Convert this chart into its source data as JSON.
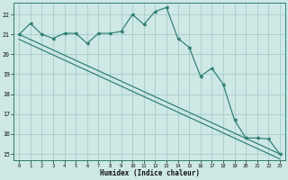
{
  "xlabel": "Humidex (Indice chaleur)",
  "x_values": [
    0,
    1,
    2,
    3,
    4,
    5,
    6,
    7,
    8,
    9,
    10,
    11,
    12,
    13,
    14,
    15,
    16,
    17,
    18,
    19,
    20,
    21,
    22,
    23
  ],
  "main_line": [
    21.0,
    21.55,
    21.0,
    20.8,
    21.05,
    21.05,
    20.55,
    21.05,
    21.05,
    21.15,
    22.0,
    21.5,
    22.15,
    22.35,
    20.8,
    20.35,
    18.9,
    19.3,
    18.5,
    16.7,
    15.8,
    15.8,
    15.75,
    15.0
  ],
  "trend1_x": [
    0,
    23
  ],
  "trend1_y": [
    21.0,
    15.0
  ],
  "trend2_x": [
    0,
    23
  ],
  "trend2_y": [
    20.75,
    14.75
  ],
  "ylim": [
    14.7,
    22.6
  ],
  "xlim": [
    -0.5,
    23.5
  ],
  "yticks": [
    15,
    16,
    17,
    18,
    19,
    20,
    21,
    22
  ],
  "xticks": [
    0,
    1,
    2,
    3,
    4,
    5,
    6,
    7,
    8,
    9,
    10,
    11,
    12,
    13,
    14,
    15,
    16,
    17,
    18,
    19,
    20,
    21,
    22,
    23
  ],
  "line_color": "#2e7d6e",
  "bg_color": "#cde8e5",
  "grid_color": "#a0c8c4",
  "spine_color": "#2e7d6e"
}
